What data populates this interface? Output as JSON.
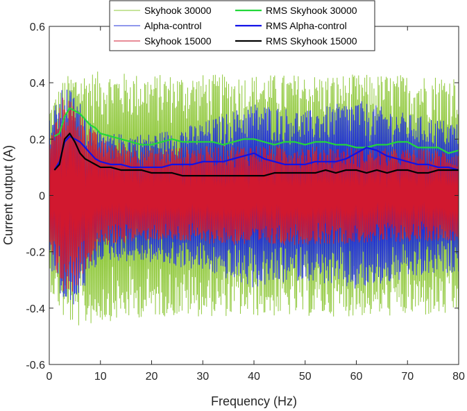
{
  "chart_data": {
    "type": "line",
    "title": "",
    "xlabel": "Frequency (Hz)",
    "ylabel": "Current output (A)",
    "xlim": [
      0,
      80
    ],
    "ylim": [
      -0.6,
      0.6
    ],
    "x_ticks": [
      0,
      10,
      20,
      30,
      40,
      50,
      60,
      70,
      80
    ],
    "y_ticks": [
      -0.6,
      -0.4,
      -0.2,
      0,
      0.2,
      0.4,
      0.6
    ],
    "y_tick_labels": [
      "-0.6",
      "-0.4",
      "-0.2",
      "0",
      "0.2",
      "0.4",
      "0.6"
    ],
    "grid": false,
    "legend_position": "top-center",
    "series": [
      {
        "name": "Skyhook 30000",
        "kind": "signal",
        "color": "#8fc83a",
        "upper": [
          [
            0,
            0.32
          ],
          [
            3,
            0.42
          ],
          [
            5,
            0.44
          ],
          [
            10,
            0.44
          ],
          [
            20,
            0.43
          ],
          [
            40,
            0.43
          ],
          [
            60,
            0.43
          ],
          [
            80,
            0.43
          ]
        ],
        "lower": [
          [
            0,
            -0.33
          ],
          [
            3,
            -0.45
          ],
          [
            6,
            -0.47
          ],
          [
            10,
            -0.45
          ],
          [
            20,
            -0.43
          ],
          [
            40,
            -0.43
          ],
          [
            60,
            -0.43
          ],
          [
            80,
            -0.43
          ]
        ]
      },
      {
        "name": "Alpha-control",
        "kind": "signal",
        "color": "#1f2fd8",
        "upper": [
          [
            0,
            0.27
          ],
          [
            3,
            0.4
          ],
          [
            5,
            0.36
          ],
          [
            10,
            0.22
          ],
          [
            20,
            0.22
          ],
          [
            30,
            0.26
          ],
          [
            40,
            0.33
          ],
          [
            50,
            0.3
          ],
          [
            60,
            0.34
          ],
          [
            70,
            0.29
          ],
          [
            80,
            0.26
          ]
        ],
        "lower": [
          [
            0,
            -0.25
          ],
          [
            3,
            -0.4
          ],
          [
            5,
            -0.39
          ],
          [
            10,
            -0.23
          ],
          [
            20,
            -0.24
          ],
          [
            30,
            -0.27
          ],
          [
            40,
            -0.33
          ],
          [
            50,
            -0.3
          ],
          [
            60,
            -0.34
          ],
          [
            70,
            -0.3
          ],
          [
            80,
            -0.27
          ]
        ]
      },
      {
        "name": "Skyhook 15000",
        "kind": "signal",
        "color": "#d1182f",
        "upper": [
          [
            0,
            0.2
          ],
          [
            3,
            0.37
          ],
          [
            5,
            0.33
          ],
          [
            10,
            0.2
          ],
          [
            20,
            0.17
          ],
          [
            40,
            0.18
          ],
          [
            60,
            0.17
          ],
          [
            80,
            0.16
          ]
        ],
        "lower": [
          [
            0,
            -0.19
          ],
          [
            3,
            -0.36
          ],
          [
            5,
            -0.34
          ],
          [
            10,
            -0.18
          ],
          [
            20,
            -0.16
          ],
          [
            40,
            -0.18
          ],
          [
            60,
            -0.17
          ],
          [
            80,
            -0.16
          ]
        ]
      },
      {
        "name": "RMS Skyhook 30000",
        "kind": "rms",
        "color": "#22d83a",
        "x": [
          1,
          2,
          3,
          4,
          5,
          6,
          7,
          8,
          9,
          10,
          12,
          14,
          16,
          18,
          20,
          22,
          24,
          26,
          28,
          30,
          32,
          34,
          36,
          38,
          40,
          42,
          44,
          46,
          48,
          50,
          52,
          54,
          56,
          58,
          60,
          62,
          64,
          66,
          68,
          70,
          72,
          74,
          76,
          78,
          80
        ],
        "values": [
          0.21,
          0.22,
          0.28,
          0.31,
          0.3,
          0.29,
          0.27,
          0.25,
          0.24,
          0.22,
          0.21,
          0.2,
          0.19,
          0.18,
          0.18,
          0.19,
          0.2,
          0.19,
          0.19,
          0.19,
          0.19,
          0.18,
          0.19,
          0.2,
          0.2,
          0.19,
          0.18,
          0.19,
          0.19,
          0.18,
          0.19,
          0.19,
          0.18,
          0.18,
          0.17,
          0.17,
          0.18,
          0.18,
          0.19,
          0.19,
          0.17,
          0.17,
          0.17,
          0.15,
          0.16
        ]
      },
      {
        "name": "RMS Alpha-control",
        "kind": "rms",
        "color": "#1010e8",
        "x": [
          1,
          2,
          3,
          4,
          5,
          6,
          7,
          8,
          9,
          10,
          12,
          14,
          16,
          18,
          20,
          22,
          24,
          26,
          28,
          30,
          32,
          34,
          36,
          38,
          40,
          42,
          44,
          46,
          48,
          50,
          52,
          54,
          56,
          58,
          60,
          62,
          64,
          66,
          68,
          70,
          72,
          74,
          76,
          78,
          80
        ],
        "values": [
          0.09,
          0.12,
          0.19,
          0.21,
          0.2,
          0.19,
          0.17,
          0.15,
          0.13,
          0.12,
          0.11,
          0.11,
          0.1,
          0.1,
          0.1,
          0.1,
          0.11,
          0.11,
          0.11,
          0.12,
          0.12,
          0.12,
          0.13,
          0.14,
          0.15,
          0.13,
          0.12,
          0.11,
          0.11,
          0.11,
          0.12,
          0.12,
          0.12,
          0.13,
          0.15,
          0.17,
          0.16,
          0.14,
          0.13,
          0.12,
          0.11,
          0.11,
          0.1,
          0.1,
          0.09
        ]
      },
      {
        "name": "RMS Skyhook 15000",
        "kind": "rms",
        "color": "#000000",
        "x": [
          1,
          2,
          3,
          4,
          5,
          6,
          7,
          8,
          9,
          10,
          12,
          14,
          16,
          18,
          20,
          22,
          24,
          26,
          28,
          30,
          32,
          34,
          36,
          38,
          40,
          42,
          44,
          46,
          48,
          50,
          52,
          54,
          56,
          58,
          60,
          62,
          64,
          66,
          68,
          70,
          72,
          74,
          76,
          78,
          80
        ],
        "values": [
          0.09,
          0.11,
          0.2,
          0.22,
          0.19,
          0.15,
          0.13,
          0.12,
          0.11,
          0.1,
          0.1,
          0.09,
          0.09,
          0.09,
          0.08,
          0.08,
          0.08,
          0.07,
          0.07,
          0.07,
          0.07,
          0.07,
          0.07,
          0.07,
          0.07,
          0.07,
          0.08,
          0.08,
          0.08,
          0.08,
          0.08,
          0.09,
          0.08,
          0.09,
          0.09,
          0.08,
          0.09,
          0.08,
          0.09,
          0.09,
          0.08,
          0.08,
          0.09,
          0.09,
          0.09
        ]
      }
    ]
  }
}
